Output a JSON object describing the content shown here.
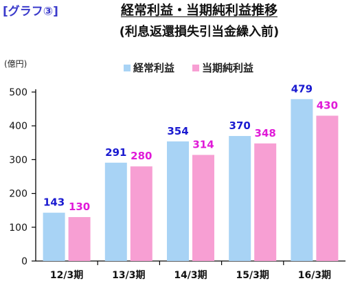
{
  "tag": "[グラフ③]",
  "chart_data": {
    "type": "bar",
    "title": "経常利益・当期純利益推移",
    "subtitle": "(利息返還損失引当金繰入前)",
    "ylabel": "(億円)",
    "ylim": [
      0,
      500
    ],
    "yticks": [
      0,
      100,
      200,
      300,
      400,
      500
    ],
    "categories": [
      "12/3期",
      "13/3期",
      "14/3期",
      "15/3期",
      "16/3期"
    ],
    "series": [
      {
        "name": "経常利益",
        "values": [
          143,
          291,
          354,
          370,
          479
        ],
        "color": "#a8d3f5",
        "label_color": "#1a1ad0"
      },
      {
        "name": "当期純利益",
        "values": [
          130,
          280,
          314,
          348,
          430
        ],
        "color": "#f79fd3",
        "label_color": "#e01ad8"
      }
    ],
    "legend": "top-center",
    "grid": false
  }
}
